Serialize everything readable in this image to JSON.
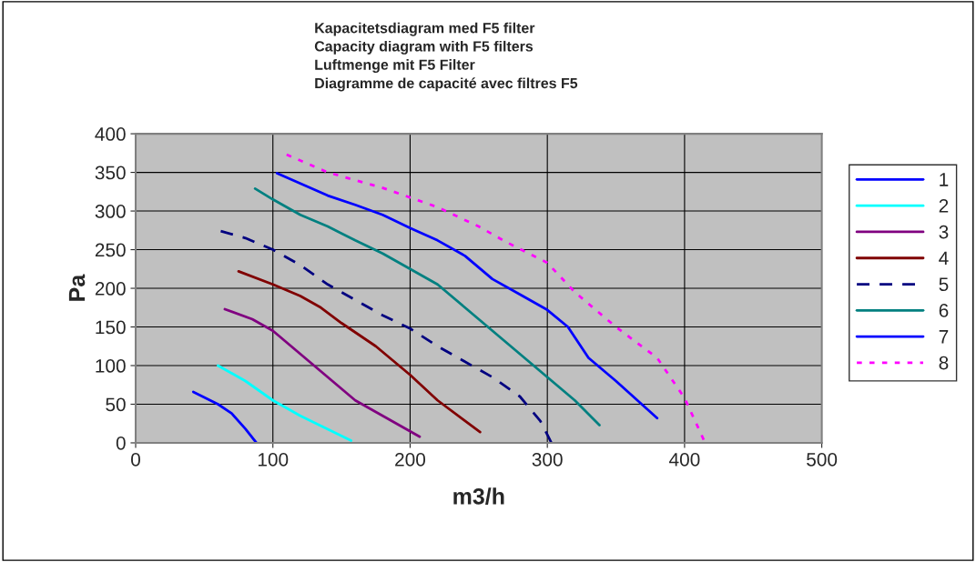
{
  "chart_data": {
    "type": "line",
    "title": "Kapacitetsdiagram med F5 filter\nCapacity diagram with F5 filters\nLuftmenge mit F5 Filter\nDiagramme de capacité avec filtres F5",
    "xlabel": "m3/h",
    "ylabel": "Pa",
    "xlim": [
      0,
      500
    ],
    "xticks": [
      0,
      100,
      200,
      300,
      400,
      500
    ],
    "ylim": [
      0,
      400
    ],
    "yticks": [
      0,
      50,
      100,
      150,
      200,
      250,
      300,
      350,
      400
    ],
    "grid": true,
    "legend": "right",
    "marker": "none",
    "series": [
      {
        "name": "1",
        "color": "#0000ff",
        "line_style": "solid",
        "x": [
          42,
          60,
          70,
          80,
          88
        ],
        "values": [
          66,
          50,
          38,
          18,
          0
        ]
      },
      {
        "name": "2",
        "color": "#00ffff",
        "line_style": "solid",
        "x": [
          60,
          80,
          100,
          120,
          157
        ],
        "values": [
          100,
          80,
          55,
          35,
          3
        ]
      },
      {
        "name": "3",
        "color": "#800080",
        "line_style": "solid",
        "x": [
          65,
          85,
          100,
          120,
          140,
          160,
          180,
          207
        ],
        "values": [
          173,
          160,
          145,
          115,
          85,
          55,
          35,
          8
        ]
      },
      {
        "name": "4",
        "color": "#800000",
        "line_style": "solid",
        "x": [
          75,
          100,
          120,
          135,
          150,
          175,
          200,
          220,
          251
        ],
        "values": [
          222,
          205,
          190,
          175,
          155,
          125,
          88,
          55,
          14
        ]
      },
      {
        "name": "5",
        "color": "#000080",
        "line_style": "dashed",
        "x": [
          62,
          80,
          100,
          120,
          140,
          160,
          180,
          200,
          220,
          240,
          260,
          280,
          295,
          303
        ],
        "values": [
          274,
          265,
          250,
          230,
          205,
          185,
          165,
          148,
          125,
          105,
          85,
          60,
          28,
          0
        ]
      },
      {
        "name": "6",
        "color": "#008080",
        "line_style": "solid",
        "x": [
          87,
          100,
          120,
          140,
          160,
          180,
          200,
          220,
          240,
          260,
          280,
          300,
          320,
          338
        ],
        "values": [
          329,
          315,
          295,
          280,
          262,
          245,
          225,
          205,
          175,
          145,
          115,
          85,
          55,
          23
        ]
      },
      {
        "name": "7",
        "color": "#0000ff",
        "line_style": "solid",
        "x": [
          103,
          140,
          160,
          180,
          200,
          220,
          240,
          260,
          280,
          300,
          315,
          330,
          350,
          380
        ],
        "values": [
          349,
          320,
          308,
          295,
          278,
          262,
          242,
          212,
          192,
          172,
          150,
          110,
          80,
          32
        ]
      },
      {
        "name": "8",
        "color": "#ff00ff",
        "line_style": "dotted",
        "x": [
          110,
          140,
          180,
          220,
          250,
          270,
          300,
          320,
          350,
          380,
          400,
          415
        ],
        "values": [
          373,
          350,
          330,
          305,
          280,
          260,
          233,
          195,
          150,
          110,
          58,
          0
        ]
      }
    ]
  }
}
